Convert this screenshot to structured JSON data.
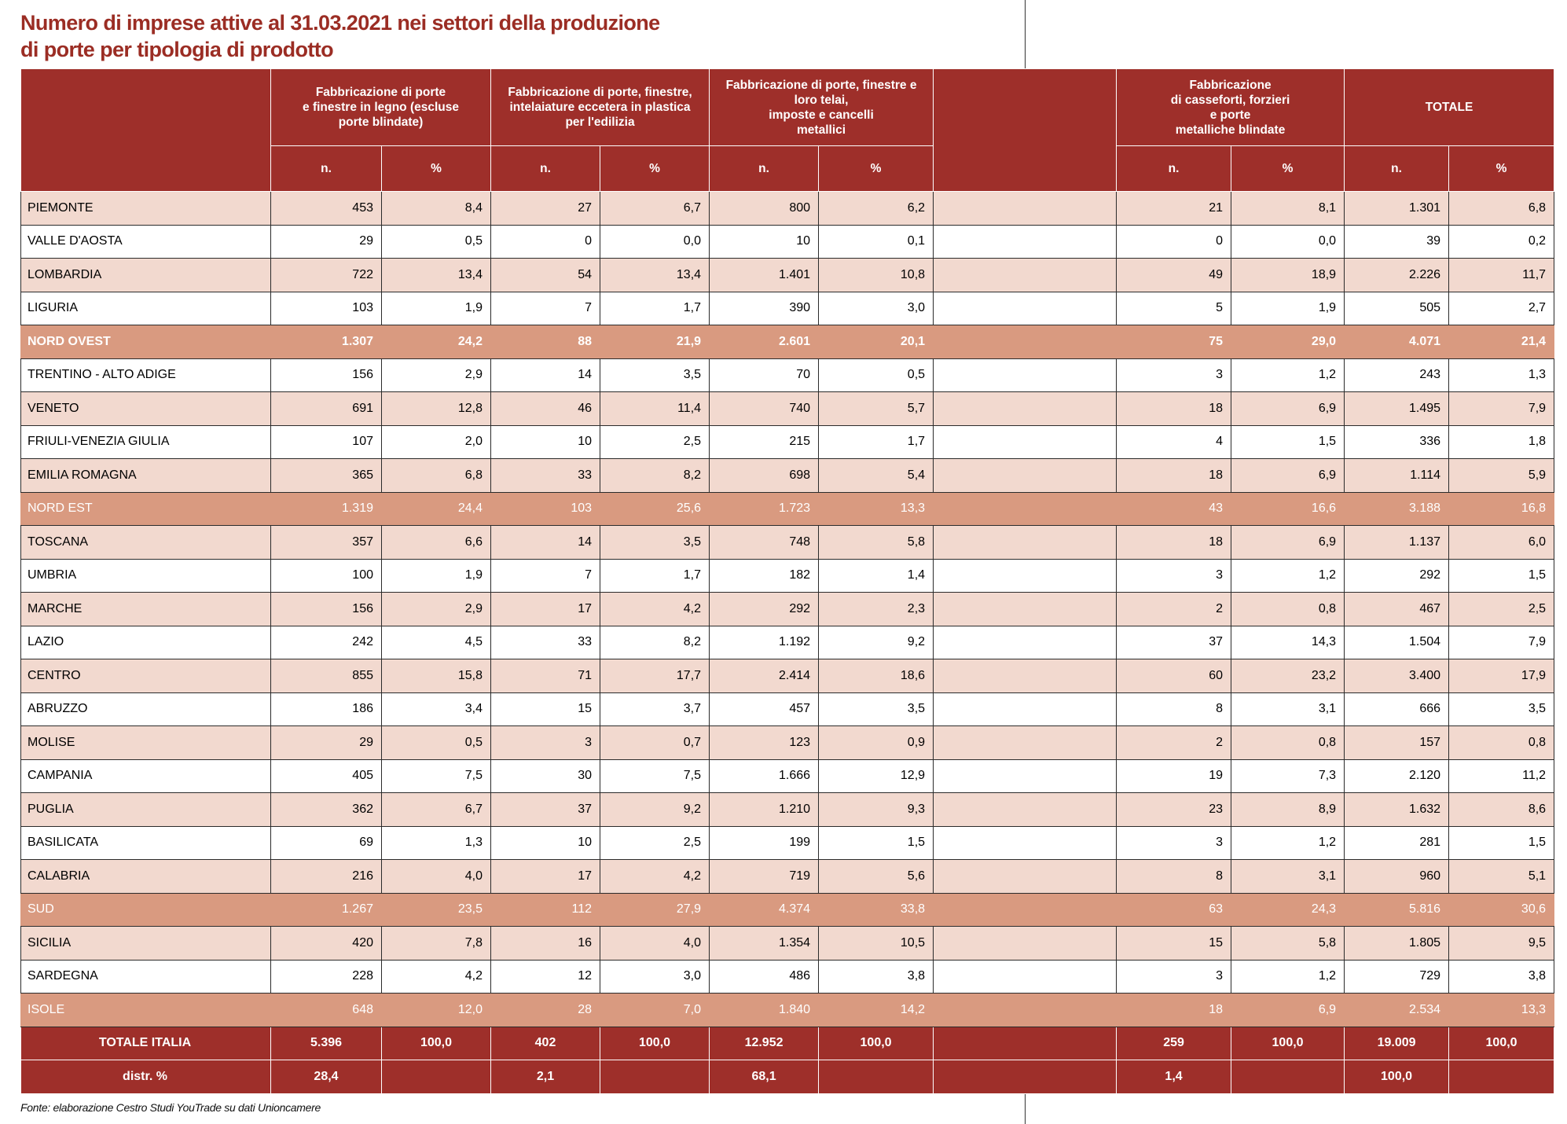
{
  "title": [
    "Numero di imprese attive al 31.03.2021 nei settori della produzione",
    "di porte per tipologia di prodotto"
  ],
  "table": {
    "groups": [
      "Fabbricazione di porte\ne finestre in legno (escluse\nporte blindate)",
      "Fabbricazione di porte, finestre,\nintelaiature eccetera in plastica\nper l'edilizia",
      "Fabbricazione di porte, finestre e\nloro telai,\nimposte e cancelli\nmetallici",
      "Fabbricazione\ndi casseforti, forzieri\ne porte\nmetalliche blindate",
      "TOTALE"
    ],
    "subheaders": [
      "n.",
      "%",
      "n.",
      "%",
      "n.",
      "%",
      "n.",
      "%",
      "n.",
      "%"
    ],
    "rows": [
      {
        "label": "PIEMONTE",
        "cells": [
          "453",
          "8,4",
          "27",
          "6,7",
          "800",
          "6,2",
          "21",
          "8,1",
          "1.301",
          "6,8"
        ]
      },
      {
        "label": "VALLE D'AOSTA",
        "cells": [
          "29",
          "0,5",
          "0",
          "0,0",
          "10",
          "0,1",
          "0",
          "0,0",
          "39",
          "0,2"
        ]
      },
      {
        "label": "LOMBARDIA",
        "cells": [
          "722",
          "13,4",
          "54",
          "13,4",
          "1.401",
          "10,8",
          "49",
          "18,9",
          "2.226",
          "11,7"
        ]
      },
      {
        "label": "LIGURIA",
        "cells": [
          "103",
          "1,9",
          "7",
          "1,7",
          "390",
          "3,0",
          "5",
          "1,9",
          "505",
          "2,7"
        ]
      },
      {
        "label": "NORD OVEST",
        "cells": [
          "1.307",
          "24,2",
          "88",
          "21,9",
          "2.601",
          "20,1",
          "75",
          "29,0",
          "4.071",
          "21,4"
        ]
      },
      {
        "label": "TRENTINO - ALTO ADIGE",
        "cells": [
          "156",
          "2,9",
          "14",
          "3,5",
          "70",
          "0,5",
          "3",
          "1,2",
          "243",
          "1,3"
        ]
      },
      {
        "label": "VENETO",
        "cells": [
          "691",
          "12,8",
          "46",
          "11,4",
          "740",
          "5,7",
          "18",
          "6,9",
          "1.495",
          "7,9"
        ]
      },
      {
        "label": "FRIULI-VENEZIA GIULIA",
        "cells": [
          "107",
          "2,0",
          "10",
          "2,5",
          "215",
          "1,7",
          "4",
          "1,5",
          "336",
          "1,8"
        ]
      },
      {
        "label": "EMILIA ROMAGNA",
        "cells": [
          "365",
          "6,8",
          "33",
          "8,2",
          "698",
          "5,4",
          "18",
          "6,9",
          "1.114",
          "5,9"
        ]
      },
      {
        "label": "NORD EST",
        "cells": [
          "1.319",
          "24,4",
          "103",
          "25,6",
          "1.723",
          "13,3",
          "43",
          "16,6",
          "3.188",
          "16,8"
        ]
      },
      {
        "label": "TOSCANA",
        "cells": [
          "357",
          "6,6",
          "14",
          "3,5",
          "748",
          "5,8",
          "18",
          "6,9",
          "1.137",
          "6,0"
        ]
      },
      {
        "label": "UMBRIA",
        "cells": [
          "100",
          "1,9",
          "7",
          "1,7",
          "182",
          "1,4",
          "3",
          "1,2",
          "292",
          "1,5"
        ]
      },
      {
        "label": "MARCHE",
        "cells": [
          "156",
          "2,9",
          "17",
          "4,2",
          "292",
          "2,3",
          "2",
          "0,8",
          "467",
          "2,5"
        ]
      },
      {
        "label": "LAZIO",
        "cells": [
          "242",
          "4,5",
          "33",
          "8,2",
          "1.192",
          "9,2",
          "37",
          "14,3",
          "1.504",
          "7,9"
        ]
      },
      {
        "label": "CENTRO",
        "cells": [
          "855",
          "15,8",
          "71",
          "17,7",
          "2.414",
          "18,6",
          "60",
          "23,2",
          "3.400",
          "17,9"
        ]
      },
      {
        "label": "ABRUZZO",
        "cells": [
          "186",
          "3,4",
          "15",
          "3,7",
          "457",
          "3,5",
          "8",
          "3,1",
          "666",
          "3,5"
        ]
      },
      {
        "label": "MOLISE",
        "cells": [
          "29",
          "0,5",
          "3",
          "0,7",
          "123",
          "0,9",
          "2",
          "0,8",
          "157",
          "0,8"
        ]
      },
      {
        "label": "CAMPANIA",
        "cells": [
          "405",
          "7,5",
          "30",
          "7,5",
          "1.666",
          "12,9",
          "19",
          "7,3",
          "2.120",
          "11,2"
        ]
      },
      {
        "label": "PUGLIA",
        "cells": [
          "362",
          "6,7",
          "37",
          "9,2",
          "1.210",
          "9,3",
          "23",
          "8,9",
          "1.632",
          "8,6"
        ]
      },
      {
        "label": "BASILICATA",
        "cells": [
          "69",
          "1,3",
          "10",
          "2,5",
          "199",
          "1,5",
          "3",
          "1,2",
          "281",
          "1,5"
        ]
      },
      {
        "label": "CALABRIA",
        "cells": [
          "216",
          "4,0",
          "17",
          "4,2",
          "719",
          "5,6",
          "8",
          "3,1",
          "960",
          "5,1"
        ]
      },
      {
        "label": "SUD",
        "cells": [
          "1.267",
          "23,5",
          "112",
          "27,9",
          "4.374",
          "33,8",
          "63",
          "24,3",
          "5.816",
          "30,6"
        ]
      },
      {
        "label": "SICILIA",
        "cells": [
          "420",
          "7,8",
          "16",
          "4,0",
          "1.354",
          "10,5",
          "15",
          "5,8",
          "1.805",
          "9,5"
        ]
      },
      {
        "label": "SARDEGNA",
        "cells": [
          "228",
          "4,2",
          "12",
          "3,0",
          "486",
          "3,8",
          "3",
          "1,2",
          "729",
          "3,8"
        ]
      },
      {
        "label": "ISOLE",
        "cells": [
          "648",
          "12,0",
          "28",
          "7,0",
          "1.840",
          "14,2",
          "18",
          "6,9",
          "2.534",
          "13,3"
        ]
      },
      {
        "label": "TOTALE ITALIA",
        "cells": [
          "5.396",
          "100,0",
          "402",
          "100,0",
          "12.952",
          "100,0",
          "259",
          "100,0",
          "19.009",
          "100,0"
        ]
      },
      {
        "label": "distr. %",
        "cells": [
          "28,4",
          null,
          "2,1",
          null,
          "68,1",
          null,
          "1,4",
          null,
          "100,0",
          null
        ]
      }
    ]
  },
  "footer": "Fonte: elaborazione Cestro Studi YouTrade su dati Unioncamere"
}
